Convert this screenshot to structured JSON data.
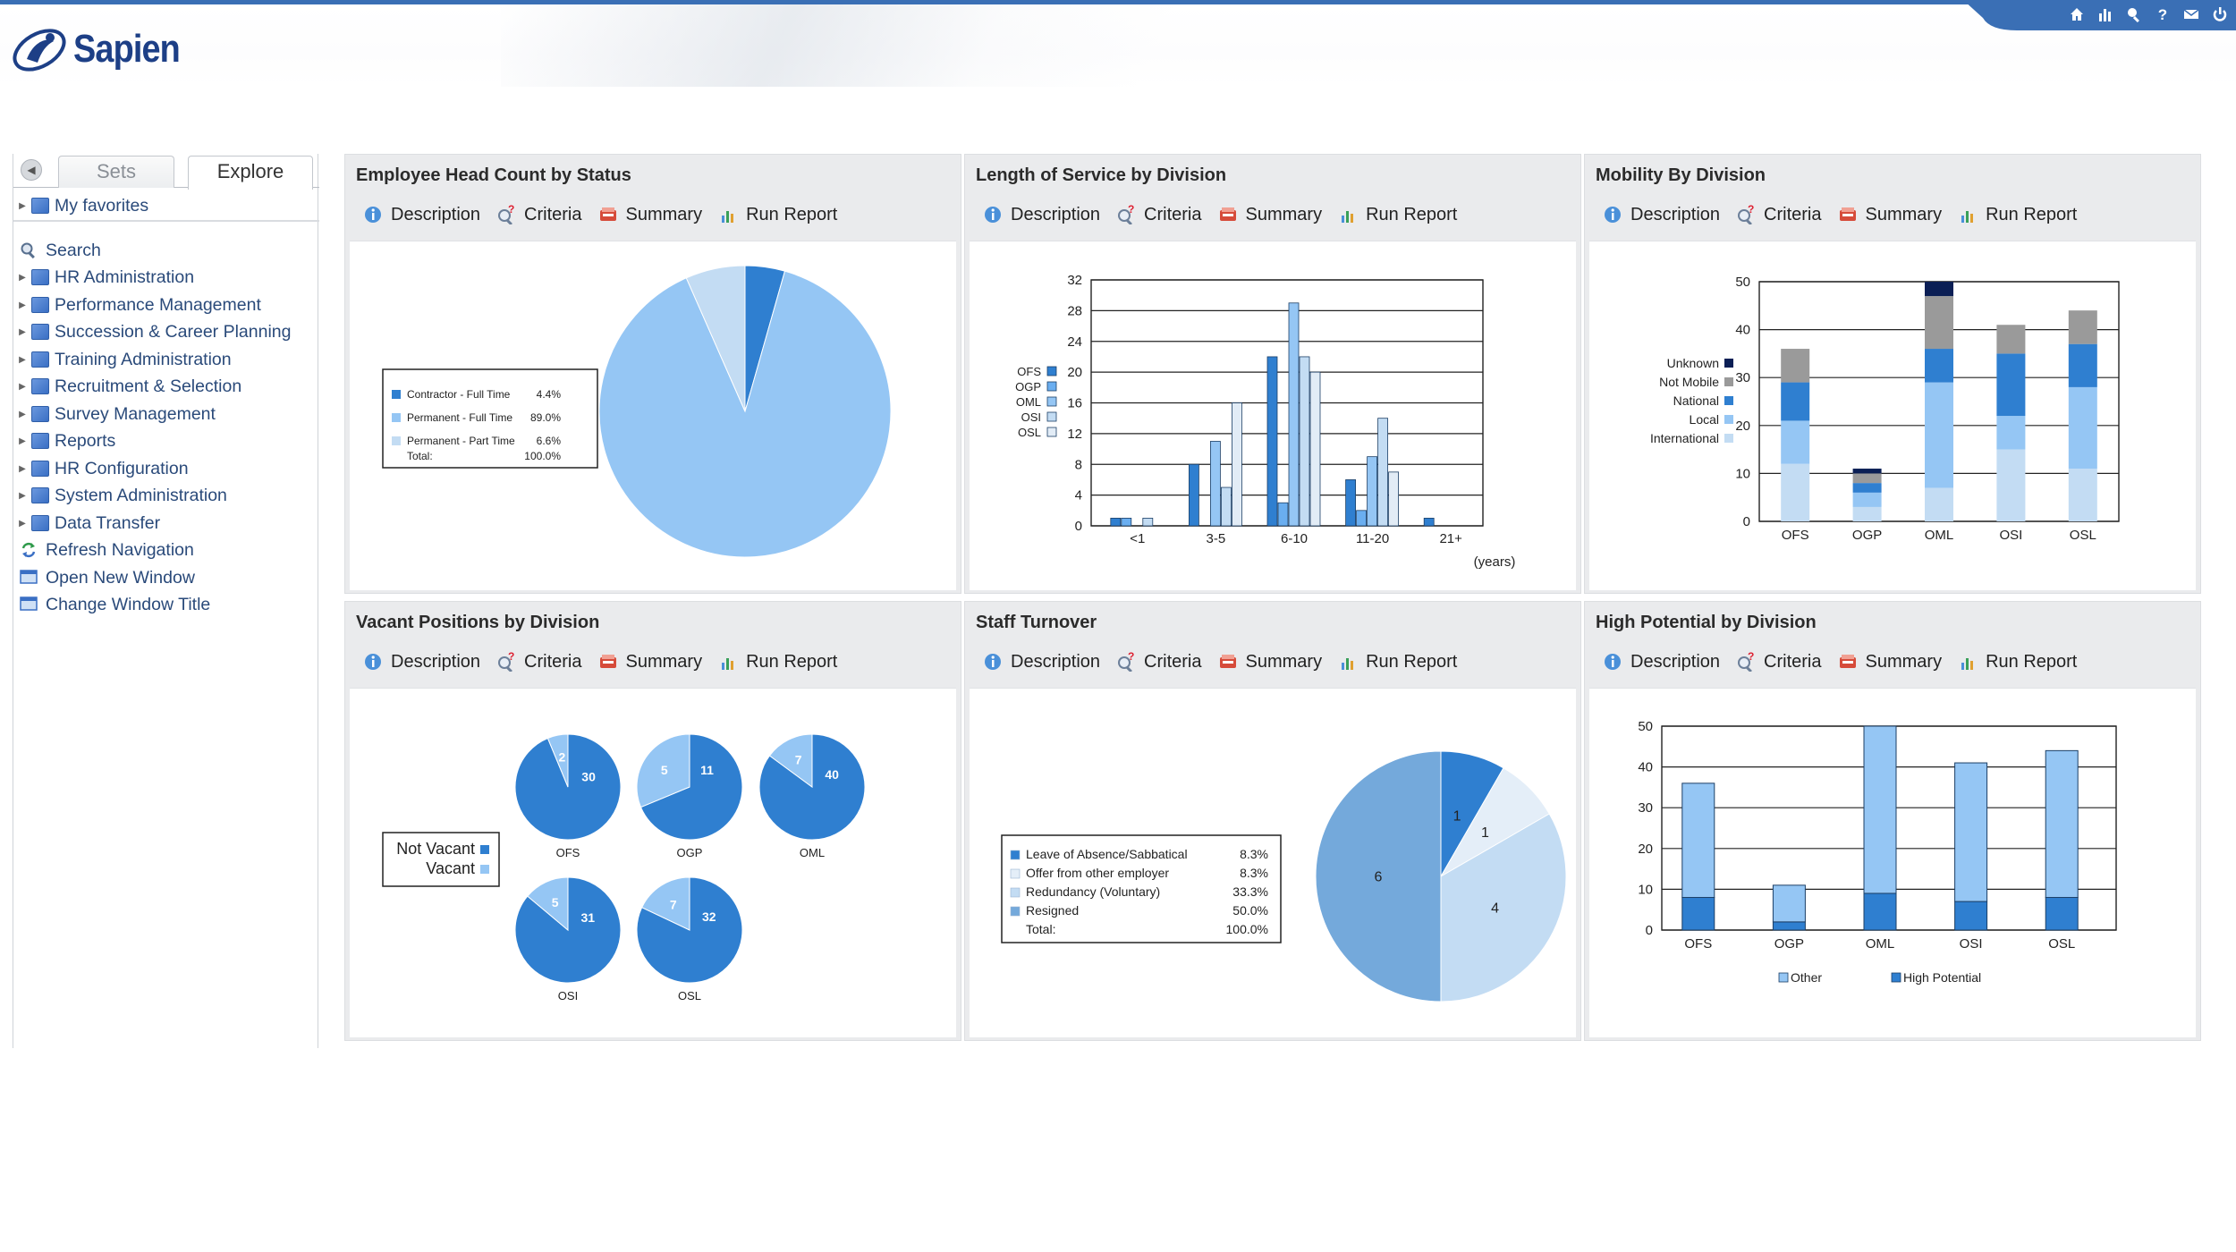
{
  "app": {
    "logo_text": "Sapien"
  },
  "toolbar": {
    "icons": [
      "home-icon",
      "chart-icon",
      "search-icon",
      "help-icon",
      "mail-icon",
      "power-icon"
    ],
    "help_glyph": "?"
  },
  "sidebar": {
    "tabs": {
      "sets": "Sets",
      "explore": "Explore"
    },
    "favorites": "My favorites",
    "items": [
      {
        "label": "Search",
        "icon": "search-icon",
        "expandable": false
      },
      {
        "label": "HR Administration",
        "icon": "folder-icon",
        "expandable": true
      },
      {
        "label": "Performance Management",
        "icon": "folder-icon",
        "expandable": true
      },
      {
        "label": "Succession & Career Planning",
        "icon": "folder-icon",
        "expandable": true
      },
      {
        "label": "Training Administration",
        "icon": "folder-icon",
        "expandable": true
      },
      {
        "label": "Recruitment & Selection",
        "icon": "folder-icon",
        "expandable": true
      },
      {
        "label": "Survey Management",
        "icon": "folder-icon",
        "expandable": true
      },
      {
        "label": "Reports",
        "icon": "folder-icon",
        "expandable": true
      },
      {
        "label": "HR Configuration",
        "icon": "folder-icon",
        "expandable": true
      },
      {
        "label": "System Administration",
        "icon": "folder-icon",
        "expandable": true
      },
      {
        "label": "Data Transfer",
        "icon": "folder-icon",
        "expandable": true
      },
      {
        "label": "Refresh Navigation",
        "icon": "refresh-icon",
        "expandable": false
      },
      {
        "label": "Open New Window",
        "icon": "window-icon",
        "expandable": false
      },
      {
        "label": "Change Window Title",
        "icon": "window-icon",
        "expandable": false
      }
    ]
  },
  "actions": {
    "description": "Description",
    "criteria": "Criteria",
    "summary": "Summary",
    "run_report": "Run Report"
  },
  "colors": {
    "dark_blue": "#2f7fd0",
    "mid_blue": "#6aaef0",
    "light_blue": "#95c6f4",
    "pale_blue": "#c3dcf3",
    "navy": "#0b1f55",
    "gray": "#9a9a9a",
    "accent": "#3a6fb5"
  },
  "panels": [
    {
      "title": "Employee Head Count by Status"
    },
    {
      "title": "Length of Service by Division"
    },
    {
      "title": "Mobility By Division"
    },
    {
      "title": "Vacant Positions by Division"
    },
    {
      "title": "Staff Turnover"
    },
    {
      "title": "High Potential by Division"
    }
  ],
  "chart_data": [
    {
      "type": "pie",
      "title": "Employee Head Count by Status",
      "slices": [
        {
          "label": "Contractor - Full Time",
          "pct_label": "4.4%",
          "value": 4.4,
          "color": "#2f7fd0"
        },
        {
          "label": "Permanent - Full Time",
          "pct_label": "89.0%",
          "value": 89.0,
          "color": "#95c6f4"
        },
        {
          "label": "Permanent - Part Time",
          "pct_label": "6.6%",
          "value": 6.6,
          "color": "#c3dcf3"
        }
      ],
      "total_label": "Total:",
      "total_value": "100.0%",
      "legend": "left"
    },
    {
      "type": "bar",
      "title": "Length of Service by Division",
      "categories": [
        "<1",
        "3-5",
        "6-10",
        "11-20",
        "21+"
      ],
      "xlabel": "(years)",
      "ylim": [
        0,
        32
      ],
      "yticks": [
        0,
        4,
        8,
        12,
        16,
        20,
        24,
        28,
        32
      ],
      "series": [
        {
          "name": "OFS",
          "values": [
            1,
            8,
            22,
            6,
            1
          ],
          "color": "#2f7fd0"
        },
        {
          "name": "OGP",
          "values": [
            1,
            0,
            3,
            2,
            0
          ],
          "color": "#6aaef0"
        },
        {
          "name": "OML",
          "values": [
            0,
            11,
            29,
            9,
            0
          ],
          "color": "#95c6f4"
        },
        {
          "name": "OSI",
          "values": [
            1,
            5,
            22,
            14,
            0
          ],
          "color": "#c3dcf3"
        },
        {
          "name": "OSL",
          "values": [
            0,
            16,
            20,
            7,
            0
          ],
          "color": "#e2ecf6"
        }
      ],
      "grid": true,
      "legend": "left"
    },
    {
      "type": "bar",
      "stacked": true,
      "title": "Mobility By Division",
      "categories": [
        "OFS",
        "OGP",
        "OML",
        "OSI",
        "OSL"
      ],
      "ylim": [
        0,
        50
      ],
      "yticks": [
        0,
        10,
        20,
        30,
        40,
        50
      ],
      "series": [
        {
          "name": "International",
          "values": [
            12,
            3,
            7,
            15,
            11
          ],
          "color": "#c3dcf3"
        },
        {
          "name": "Local",
          "values": [
            9,
            3,
            22,
            7,
            17
          ],
          "color": "#95c6f4"
        },
        {
          "name": "National",
          "values": [
            8,
            2,
            7,
            13,
            9
          ],
          "color": "#2f7fd0"
        },
        {
          "name": "Not Mobile",
          "values": [
            7,
            2,
            11,
            6,
            7
          ],
          "color": "#9a9a9a"
        },
        {
          "name": "Unknown",
          "values": [
            0,
            1,
            3,
            0,
            0
          ],
          "color": "#0b1f55"
        }
      ],
      "grid": true,
      "legend": "left"
    },
    {
      "type": "pie",
      "title": "Vacant Positions by Division",
      "legend_entries": [
        "Not Vacant",
        "Vacant"
      ],
      "legend_colors": [
        "#2f7fd0",
        "#95c6f4"
      ],
      "pies": [
        {
          "name": "OFS",
          "not_vacant": 30,
          "vacant": 2
        },
        {
          "name": "OGP",
          "not_vacant": 11,
          "vacant": 5
        },
        {
          "name": "OML",
          "not_vacant": 40,
          "vacant": 7
        },
        {
          "name": "OSI",
          "not_vacant": 31,
          "vacant": 5
        },
        {
          "name": "OSL",
          "not_vacant": 32,
          "vacant": 7
        }
      ],
      "legend": "left"
    },
    {
      "type": "pie",
      "title": "Staff Turnover",
      "slices": [
        {
          "label": "Leave of Absence/Sabbatical",
          "pct_label": "8.3%",
          "value": 1,
          "color": "#2f7fd0"
        },
        {
          "label": "Offer from other employer",
          "pct_label": "8.3%",
          "value": 1,
          "color": "#e4eef8"
        },
        {
          "label": "Redundancy (Voluntary)",
          "pct_label": "33.3%",
          "value": 4,
          "color": "#c3dcf3"
        },
        {
          "label": "Resigned",
          "pct_label": "50.0%",
          "value": 6,
          "color": "#74a9db"
        }
      ],
      "total_label": "Total:",
      "total_value": "100.0%",
      "legend": "left"
    },
    {
      "type": "bar",
      "stacked": true,
      "title": "High Potential by Division",
      "categories": [
        "OFS",
        "OGP",
        "OML",
        "OSI",
        "OSL"
      ],
      "ylim": [
        0,
        50
      ],
      "yticks": [
        0,
        10,
        20,
        30,
        40,
        50
      ],
      "series": [
        {
          "name": "High Potential",
          "values": [
            8,
            2,
            9,
            7,
            8
          ],
          "color": "#2f7fd0"
        },
        {
          "name": "Other",
          "values": [
            28,
            9,
            41,
            34,
            36
          ],
          "color": "#95c6f4"
        }
      ],
      "grid": true,
      "legend": "bottom"
    }
  ]
}
